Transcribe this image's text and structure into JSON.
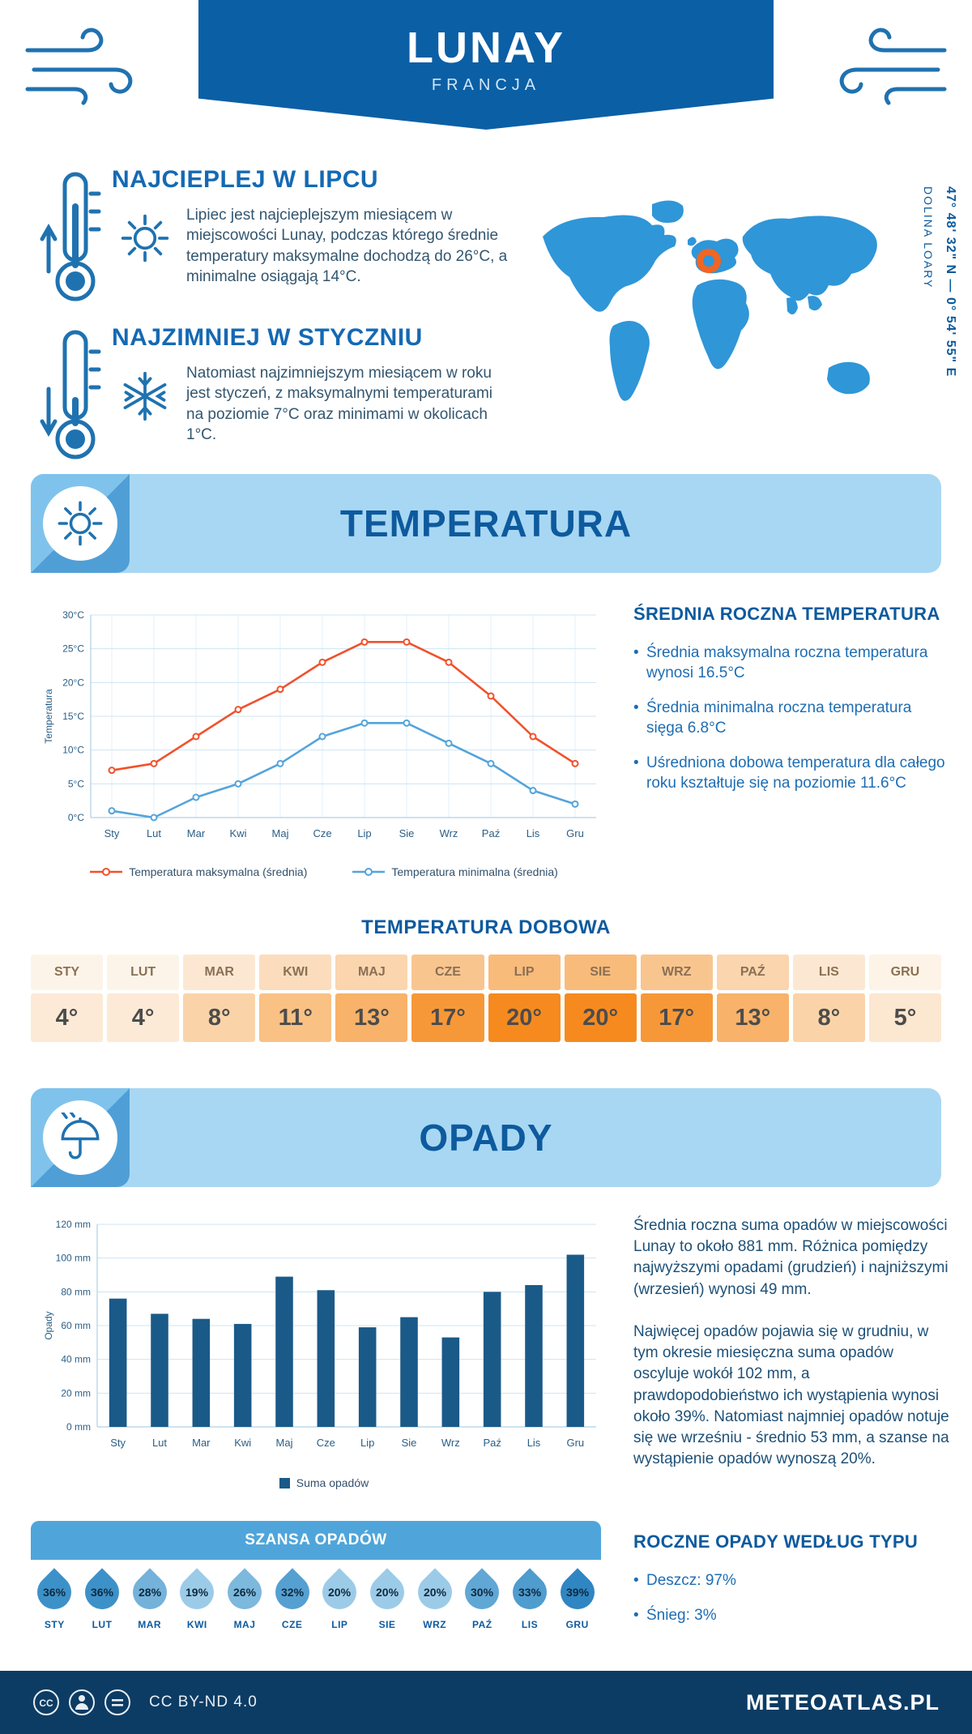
{
  "theme": {
    "primary_dark": "#0b5fa5",
    "banner_light": "#a8d7f3",
    "heading_blue": "#0d5a9e",
    "accent_orange": "#f26522",
    "footer_navy": "#0c3c64"
  },
  "header": {
    "title": "LUNAY",
    "subtitle": "FRANCJA"
  },
  "intro": {
    "warm": {
      "heading": "NAJCIEPLEJ W LIPCU",
      "text": "Lipiec jest najcieplejszym miesiącem w miejscowości Lunay, podczas którego średnie temperatury maksymalne dochodzą do 26°C, a minimalne osiągają 14°C."
    },
    "cold": {
      "heading": "NAJZIMNIEJ W STYCZNIU",
      "text": "Natomiast najzimniejszym miesiącem w roku jest styczeń, z maksymalnymi temperaturami na poziomie 7°C oraz minimami w okolicach 1°C."
    }
  },
  "map": {
    "coordinates": "47° 48' 32\" N — 0° 54' 55\" E",
    "region": "DOLINA LOARY",
    "marker_color": "#f26522"
  },
  "sections": {
    "temperature": "TEMPERATURA",
    "precipitation": "OPADY",
    "chance": "SZANSA OPADÓW",
    "daily": "TEMPERATURA DOBOWA"
  },
  "temperature_summary": {
    "heading": "ŚREDNIA ROCZNA TEMPERATURA",
    "bullets": [
      "Średnia maksymalna roczna temperatura wynosi 16.5°C",
      "Średnia minimalna roczna temperatura sięga 6.8°C",
      "Uśredniona dobowa temperatura dla całego roku kształtuje się na poziomie 11.6°C"
    ]
  },
  "daily_table": {
    "months": [
      "STY",
      "LUT",
      "MAR",
      "KWI",
      "MAJ",
      "CZE",
      "LIP",
      "SIE",
      "WRZ",
      "PAŹ",
      "LIS",
      "GRU"
    ],
    "values": [
      "4°",
      "4°",
      "8°",
      "11°",
      "13°",
      "17°",
      "20°",
      "20°",
      "17°",
      "13°",
      "8°",
      "5°"
    ],
    "header_colors": [
      "#fdf4e9",
      "#fdf4e9",
      "#fce8d2",
      "#fbddbd",
      "#fbd5ae",
      "#f9c58f",
      "#f9bb7a",
      "#f9bb7a",
      "#f9c58f",
      "#fbd5ae",
      "#fce8d2",
      "#fdf3e6"
    ],
    "value_colors": [
      "#fcead6",
      "#fcead6",
      "#fad4a8",
      "#f9c184",
      "#f8b269",
      "#f79838",
      "#f68a1f",
      "#f68a1f",
      "#f79838",
      "#f8b269",
      "#fad4a8",
      "#fce7d0"
    ]
  },
  "precip_summary": {
    "para1": "Średnia roczna suma opadów w miejscowości Lunay to około 881 mm. Różnica pomiędzy najwyższymi opadami (grudzień) i najniższymi (wrzesień) wynosi 49 mm.",
    "para2": "Najwięcej opadów pojawia się w grudniu, w tym okresie miesięczna suma opadów oscyluje wokół 102 mm, a prawdopodobieństwo ich wystąpienia wynosi około 39%. Natomiast najmniej opadów notuje się we wrześniu - średnio 53 mm, a szanse na wystąpienie opadów wynoszą 20%."
  },
  "precip_type": {
    "heading": "ROCZNE OPADY WEDŁUG TYPU",
    "bullets": [
      "Deszcz: 97%",
      "Śnieg: 3%"
    ]
  },
  "chance": {
    "months": [
      "STY",
      "LUT",
      "MAR",
      "KWI",
      "MAJ",
      "CZE",
      "LIP",
      "SIE",
      "WRZ",
      "PAŹ",
      "LIS",
      "GRU"
    ],
    "values": [
      "36%",
      "36%",
      "28%",
      "19%",
      "26%",
      "32%",
      "20%",
      "20%",
      "20%",
      "30%",
      "33%",
      "39%"
    ],
    "drop_colors": [
      "#3d91c9",
      "#3d91c9",
      "#74b2da",
      "#9ccbe8",
      "#7db8dd",
      "#55a0d1",
      "#9ccbe8",
      "#9ccbe8",
      "#9ccbe8",
      "#60a7d5",
      "#4f9ccf",
      "#2f86c2"
    ]
  },
  "footer": {
    "license": "CC BY-ND 4.0",
    "brand": "METEOATLAS.PL"
  },
  "chart_data": [
    {
      "type": "line",
      "title": "Temperatura",
      "categories": [
        "Sty",
        "Lut",
        "Mar",
        "Kwi",
        "Maj",
        "Cze",
        "Lip",
        "Sie",
        "Wrz",
        "Paź",
        "Lis",
        "Gru"
      ],
      "series": [
        {
          "name": "Temperatura maksymalna (średnia)",
          "color": "#f1512b",
          "values": [
            7,
            8,
            12,
            16,
            19,
            23,
            26,
            26,
            23,
            18,
            12,
            8
          ]
        },
        {
          "name": "Temperatura minimalna (średnia)",
          "color": "#54a4da",
          "values": [
            1,
            0,
            3,
            5,
            8,
            12,
            14,
            14,
            11,
            8,
            4,
            2
          ]
        }
      ],
      "xlabel": "",
      "ylabel": "Temperatura",
      "ylim": [
        0,
        30
      ],
      "yticks": [
        "0°C",
        "5°C",
        "10°C",
        "15°C",
        "20°C",
        "25°C",
        "30°C"
      ],
      "grid": true,
      "legend_position": "bottom"
    },
    {
      "type": "bar",
      "title": "Opady",
      "categories": [
        "Sty",
        "Lut",
        "Mar",
        "Kwi",
        "Maj",
        "Cze",
        "Lip",
        "Sie",
        "Wrz",
        "Paź",
        "Lis",
        "Gru"
      ],
      "values": [
        76,
        67,
        64,
        61,
        89,
        81,
        59,
        65,
        53,
        80,
        84,
        102
      ],
      "legend": "Suma opadów",
      "bar_color": "#1a5a88",
      "xlabel": "",
      "ylabel": "Opady",
      "ylim": [
        0,
        120
      ],
      "yticks": [
        "0 mm",
        "20 mm",
        "40 mm",
        "60 mm",
        "80 mm",
        "100 mm",
        "120 mm"
      ],
      "grid": true,
      "legend_position": "bottom"
    }
  ]
}
